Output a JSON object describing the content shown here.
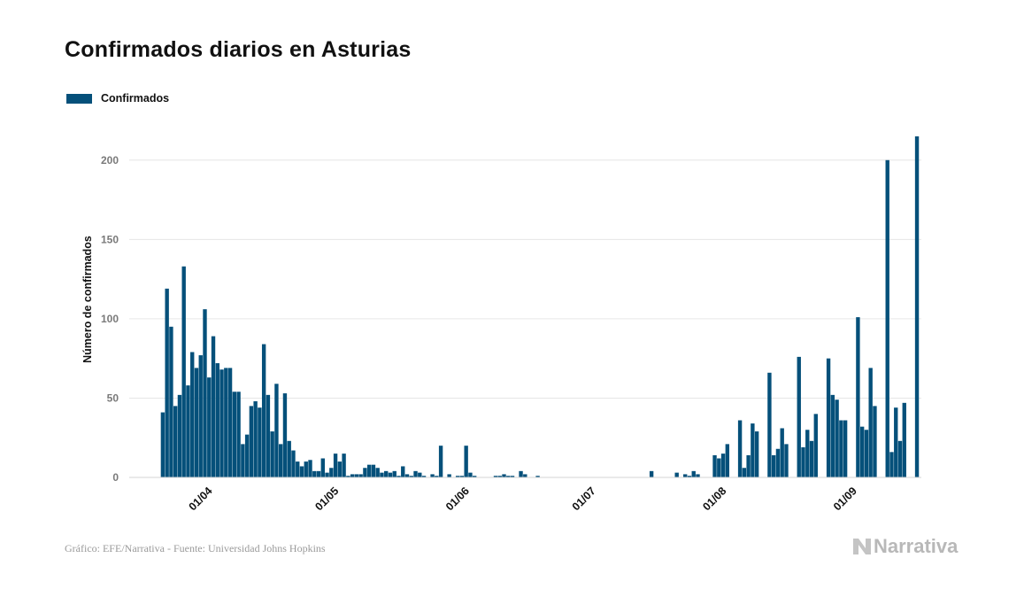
{
  "page": {
    "title": "Confirmados diarios en Asturias",
    "footer": "Gráfico: EFE/Narrativa - Fuente: Universidad Johns Hopkins",
    "brand": "Narrativa"
  },
  "chart_data": {
    "type": "bar",
    "title": "Confirmados diarios en Asturias",
    "xlabel": "",
    "ylabel": "Número de confirmados",
    "ylim": [
      0,
      225
    ],
    "yticks": [
      0,
      50,
      100,
      150,
      200
    ],
    "grid": true,
    "legend_position": "top-left",
    "color": "#05507a",
    "x_start": "2020-03-13",
    "x_end": "2020-09-17",
    "xtick_labels": [
      {
        "date": "2020-04-01",
        "label": "01/04"
      },
      {
        "date": "2020-05-01",
        "label": "01/05"
      },
      {
        "date": "2020-06-01",
        "label": "01/06"
      },
      {
        "date": "2020-07-01",
        "label": "01/07"
      },
      {
        "date": "2020-08-01",
        "label": "01/08"
      },
      {
        "date": "2020-09-01",
        "label": "01/09"
      }
    ],
    "series": [
      {
        "name": "Confirmados",
        "points": [
          [
            "2020-03-21",
            41
          ],
          [
            "2020-03-22",
            119
          ],
          [
            "2020-03-23",
            95
          ],
          [
            "2020-03-24",
            45
          ],
          [
            "2020-03-25",
            52
          ],
          [
            "2020-03-26",
            133
          ],
          [
            "2020-03-27",
            58
          ],
          [
            "2020-03-28",
            79
          ],
          [
            "2020-03-29",
            69
          ],
          [
            "2020-03-30",
            77
          ],
          [
            "2020-03-31",
            106
          ],
          [
            "2020-04-01",
            63
          ],
          [
            "2020-04-02",
            89
          ],
          [
            "2020-04-03",
            72
          ],
          [
            "2020-04-04",
            68
          ],
          [
            "2020-04-05",
            69
          ],
          [
            "2020-04-06",
            69
          ],
          [
            "2020-04-07",
            54
          ],
          [
            "2020-04-08",
            54
          ],
          [
            "2020-04-09",
            21
          ],
          [
            "2020-04-10",
            27
          ],
          [
            "2020-04-11",
            45
          ],
          [
            "2020-04-12",
            48
          ],
          [
            "2020-04-13",
            44
          ],
          [
            "2020-04-14",
            84
          ],
          [
            "2020-04-15",
            52
          ],
          [
            "2020-04-16",
            29
          ],
          [
            "2020-04-17",
            59
          ],
          [
            "2020-04-18",
            21
          ],
          [
            "2020-04-19",
            53
          ],
          [
            "2020-04-20",
            23
          ],
          [
            "2020-04-21",
            17
          ],
          [
            "2020-04-22",
            10
          ],
          [
            "2020-04-23",
            7
          ],
          [
            "2020-04-24",
            10
          ],
          [
            "2020-04-25",
            11
          ],
          [
            "2020-04-26",
            4
          ],
          [
            "2020-04-27",
            4
          ],
          [
            "2020-04-28",
            12
          ],
          [
            "2020-04-29",
            3
          ],
          [
            "2020-04-30",
            6
          ],
          [
            "2020-05-01",
            15
          ],
          [
            "2020-05-02",
            10
          ],
          [
            "2020-05-03",
            15
          ],
          [
            "2020-05-04",
            1
          ],
          [
            "2020-05-05",
            2
          ],
          [
            "2020-05-06",
            2
          ],
          [
            "2020-05-07",
            2
          ],
          [
            "2020-05-08",
            6
          ],
          [
            "2020-05-09",
            8
          ],
          [
            "2020-05-10",
            8
          ],
          [
            "2020-05-11",
            6
          ],
          [
            "2020-05-12",
            3
          ],
          [
            "2020-05-13",
            4
          ],
          [
            "2020-05-14",
            3
          ],
          [
            "2020-05-15",
            4
          ],
          [
            "2020-05-16",
            1
          ],
          [
            "2020-05-17",
            7
          ],
          [
            "2020-05-18",
            2
          ],
          [
            "2020-05-19",
            1
          ],
          [
            "2020-05-20",
            4
          ],
          [
            "2020-05-21",
            3
          ],
          [
            "2020-05-22",
            1
          ],
          [
            "2020-05-24",
            2
          ],
          [
            "2020-05-25",
            1
          ],
          [
            "2020-05-26",
            20
          ],
          [
            "2020-05-28",
            2
          ],
          [
            "2020-05-30",
            1
          ],
          [
            "2020-05-31",
            1
          ],
          [
            "2020-06-01",
            20
          ],
          [
            "2020-06-02",
            3
          ],
          [
            "2020-06-03",
            1
          ],
          [
            "2020-06-08",
            1
          ],
          [
            "2020-06-09",
            1
          ],
          [
            "2020-06-10",
            2
          ],
          [
            "2020-06-11",
            1
          ],
          [
            "2020-06-12",
            1
          ],
          [
            "2020-06-14",
            4
          ],
          [
            "2020-06-15",
            2
          ],
          [
            "2020-06-18",
            1
          ],
          [
            "2020-07-15",
            4
          ],
          [
            "2020-07-21",
            3
          ],
          [
            "2020-07-23",
            2
          ],
          [
            "2020-07-24",
            1
          ],
          [
            "2020-07-25",
            4
          ],
          [
            "2020-07-26",
            2
          ],
          [
            "2020-07-30",
            14
          ],
          [
            "2020-07-31",
            12
          ],
          [
            "2020-08-01",
            15
          ],
          [
            "2020-08-02",
            21
          ],
          [
            "2020-08-05",
            36
          ],
          [
            "2020-08-06",
            6
          ],
          [
            "2020-08-07",
            14
          ],
          [
            "2020-08-08",
            34
          ],
          [
            "2020-08-09",
            29
          ],
          [
            "2020-08-12",
            66
          ],
          [
            "2020-08-13",
            14
          ],
          [
            "2020-08-14",
            18
          ],
          [
            "2020-08-15",
            31
          ],
          [
            "2020-08-16",
            21
          ],
          [
            "2020-08-19",
            76
          ],
          [
            "2020-08-20",
            19
          ],
          [
            "2020-08-21",
            30
          ],
          [
            "2020-08-22",
            23
          ],
          [
            "2020-08-23",
            40
          ],
          [
            "2020-08-26",
            75
          ],
          [
            "2020-08-27",
            52
          ],
          [
            "2020-08-28",
            49
          ],
          [
            "2020-08-29",
            36
          ],
          [
            "2020-08-30",
            36
          ],
          [
            "2020-09-02",
            101
          ],
          [
            "2020-09-03",
            32
          ],
          [
            "2020-09-04",
            30
          ],
          [
            "2020-09-05",
            69
          ],
          [
            "2020-09-06",
            45
          ],
          [
            "2020-09-09",
            200
          ],
          [
            "2020-09-10",
            16
          ],
          [
            "2020-09-11",
            44
          ],
          [
            "2020-09-12",
            23
          ],
          [
            "2020-09-13",
            47
          ],
          [
            "2020-09-16",
            215
          ]
        ]
      }
    ]
  }
}
